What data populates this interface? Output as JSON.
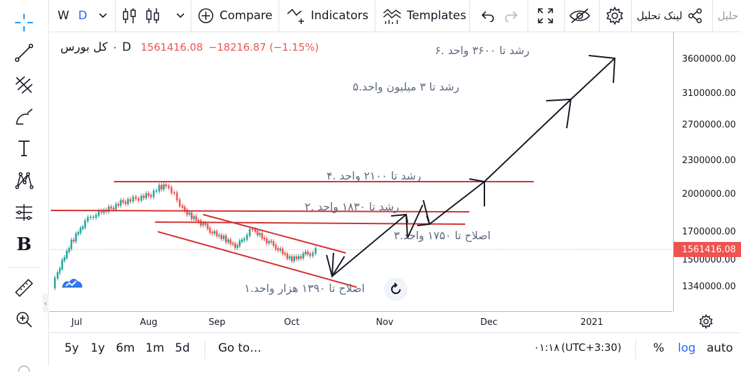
{
  "toolbar": {
    "interval_w": "W",
    "interval_d": "D",
    "compare_label": "Compare",
    "indicators_label": "Indicators",
    "templates_label": "Templates",
    "share_label": "لینک تحلیل",
    "publish_label": "حلیل"
  },
  "legend": {
    "symbol": "کل بورس",
    "interval": "D",
    "price": "1561416.08",
    "change": "−18216.87 (−1.15%)"
  },
  "colors": {
    "up": "#26a69a",
    "down": "#ef5350",
    "drawing": "#d32f2f",
    "price_tag": "#ef5350"
  },
  "price_axis": {
    "labels": [
      "3600000.00",
      "3100000.00",
      "2700000.00",
      "2300000.00",
      "2000000.00",
      "1700000.00",
      "1500000.00",
      "1340000.00"
    ],
    "current": "1561416.08"
  },
  "time_axis": {
    "labels": [
      "Jul",
      "Aug",
      "Sep",
      "Oct",
      "Nov",
      "Dec",
      "2021"
    ]
  },
  "annotations": {
    "a6": "رشد تا ۳۶۰۰ واحد .۶",
    "a5": "رشد تا ۳ میلیون واحد.۵",
    "a4": "رشد تا ۲۱۰۰ واحد .۴",
    "a2": "رشد تا ۱۸۳۰ واحد .۲",
    "a3": "اصلاح تا ۱۷۵۰ واحد.۳",
    "a1": "اصلاح تا ۱۳۹۰ هزار واحد.۱"
  },
  "ranges": [
    "5y",
    "1y",
    "6m",
    "1m",
    "5d"
  ],
  "goto_label": "Go to…",
  "clock": "۰۱:۱۸",
  "timezone": "(UTC+3:30)",
  "scale_options": {
    "percent": "%",
    "log": "log",
    "auto": "auto"
  }
}
